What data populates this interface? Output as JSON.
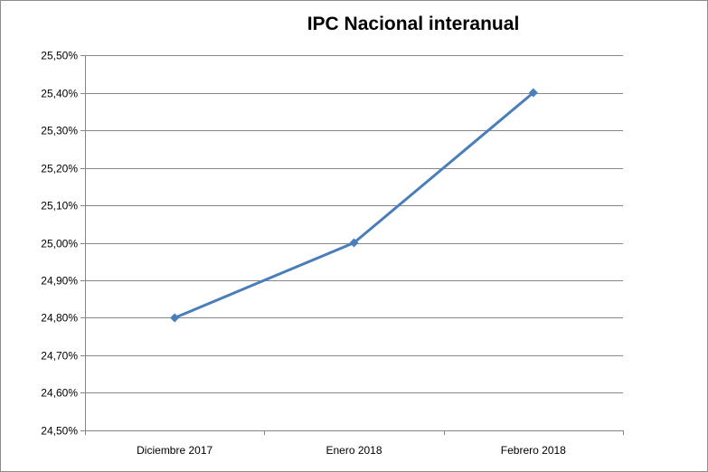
{
  "chart_data": {
    "type": "line",
    "title": "IPC Nacional interanual",
    "categories": [
      "Diciembre 2017",
      "Enero 2018",
      "Febrero 2018"
    ],
    "series": [
      {
        "values": [
          24.8,
          25.0,
          25.4
        ],
        "color": "#4a7ebb"
      }
    ],
    "ylim": [
      24.5,
      25.5
    ],
    "y_ticks": [
      "24,50%",
      "24,60%",
      "24,70%",
      "24,80%",
      "24,90%",
      "25,00%",
      "25,10%",
      "25,20%",
      "25,30%",
      "25,40%",
      "25,50%"
    ],
    "y_tick_values": [
      24.5,
      24.6,
      24.7,
      24.8,
      24.9,
      25.0,
      25.1,
      25.2,
      25.3,
      25.4,
      25.5
    ],
    "grid": true,
    "legend": "none",
    "marker": "diamond",
    "gridline_color": "#868686"
  }
}
